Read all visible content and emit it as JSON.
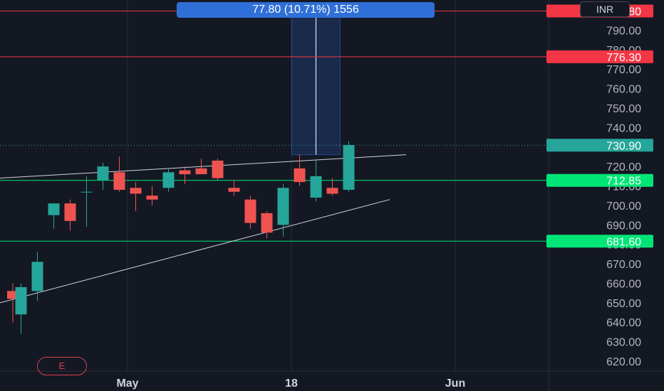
{
  "currency": "INR",
  "measure_label": "77.80 (10.71%) 1556",
  "event_marker": "E",
  "colors": {
    "up": "#26a69a",
    "down": "#ef5350",
    "background": "#141823",
    "grid": "#242a36",
    "resistance": "#f23645",
    "support": "#00e676",
    "last": "#26a69a",
    "measure": "#2f6fd8"
  },
  "chart_data": {
    "type": "candlestick",
    "ylim": [
      615,
      800
    ],
    "y_ticks": [
      "620.00",
      "630.00",
      "640.00",
      "650.00",
      "660.00",
      "670.00",
      "680.00",
      "690.00",
      "700.00",
      "710.00",
      "720.00",
      "730.00",
      "740.00",
      "750.00",
      "760.00",
      "770.00",
      "780.00",
      "790.00",
      "800.00"
    ],
    "x_ticks": [
      {
        "label": "May",
        "index": 7
      },
      {
        "label": "18",
        "index": 17
      },
      {
        "label": "Jun",
        "index": 27
      }
    ],
    "candles": [
      {
        "i": 0,
        "o": 656,
        "h": 660,
        "l": 640,
        "c": 652
      },
      {
        "i": 0.5,
        "o": 644,
        "h": 660,
        "l": 634,
        "c": 658
      },
      {
        "i": 1.5,
        "o": 656,
        "h": 676,
        "l": 651,
        "c": 671
      },
      {
        "i": 2.5,
        "o": 695,
        "h": 700,
        "l": 688,
        "c": 701
      },
      {
        "i": 3.5,
        "o": 701,
        "h": 703,
        "l": 687,
        "c": 692
      },
      {
        "i": 4.5,
        "o": 707,
        "h": 715,
        "l": 689,
        "c": 707
      },
      {
        "i": 5.5,
        "o": 713,
        "h": 722,
        "l": 708,
        "c": 720
      },
      {
        "i": 6.5,
        "o": 717,
        "h": 725,
        "l": 707,
        "c": 708
      },
      {
        "i": 7.5,
        "o": 709,
        "h": 712,
        "l": 697,
        "c": 706
      },
      {
        "i": 8.5,
        "o": 705,
        "h": 710,
        "l": 700,
        "c": 703
      },
      {
        "i": 9.5,
        "o": 709,
        "h": 719,
        "l": 707,
        "c": 717
      },
      {
        "i": 10.5,
        "o": 718,
        "h": 720,
        "l": 711,
        "c": 716
      },
      {
        "i": 11.5,
        "o": 719,
        "h": 724,
        "l": 716,
        "c": 716
      },
      {
        "i": 12.5,
        "o": 723,
        "h": 724,
        "l": 713,
        "c": 714
      },
      {
        "i": 13.5,
        "o": 709,
        "h": 713,
        "l": 705,
        "c": 707
      },
      {
        "i": 14.5,
        "o": 703,
        "h": 705,
        "l": 688,
        "c": 691
      },
      {
        "i": 15.5,
        "o": 696,
        "h": 697,
        "l": 683,
        "c": 686
      },
      {
        "i": 16.5,
        "o": 690,
        "h": 711,
        "l": 684,
        "c": 709
      },
      {
        "i": 17.5,
        "o": 719,
        "h": 726,
        "l": 710,
        "c": 712
      },
      {
        "i": 18.5,
        "o": 704,
        "h": 723,
        "l": 702,
        "c": 715
      },
      {
        "i": 19.5,
        "o": 709,
        "h": 714,
        "l": 705,
        "c": 706
      },
      {
        "i": 20.5,
        "o": 708,
        "h": 733,
        "l": 707,
        "c": 731
      }
    ],
    "levels": [
      {
        "label": "799.80",
        "value": 799.8,
        "kind": "resistance"
      },
      {
        "label": "776.30",
        "value": 776.3,
        "kind": "resistance"
      },
      {
        "label": "712.85",
        "value": 712.85,
        "kind": "support"
      },
      {
        "label": "681.60",
        "value": 681.6,
        "kind": "support"
      }
    ],
    "last_price": {
      "label": "730.90",
      "value": 730.9
    },
    "trendlines": [
      {
        "x1": 0,
        "y1": 650,
        "x2": 23,
        "y2": 703
      },
      {
        "x1": 0,
        "y1": 714,
        "x2": 24,
        "y2": 726
      }
    ],
    "measure": {
      "from": 726,
      "to": 803,
      "x1": 17.5,
      "x2": 19.5
    }
  }
}
